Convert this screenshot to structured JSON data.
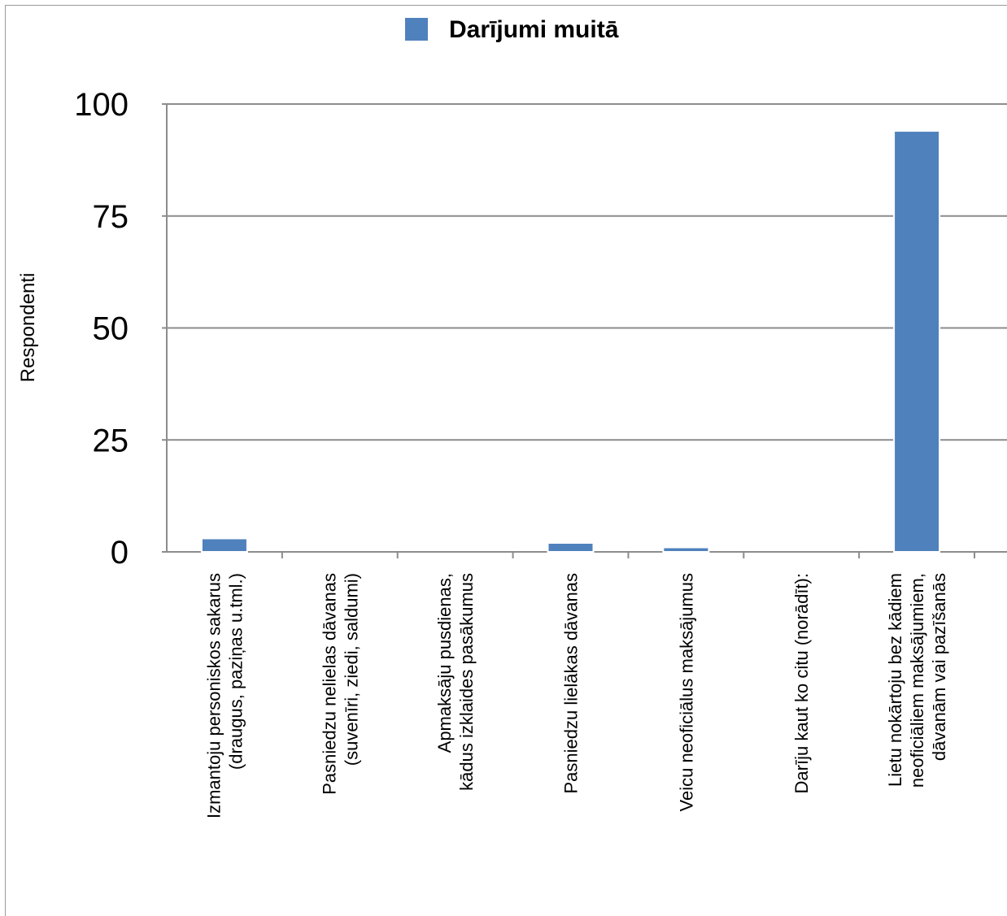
{
  "chart_data": {
    "type": "bar",
    "title": "",
    "legend": {
      "entries": [
        "Darījumi muitā"
      ],
      "placement": "top-center"
    },
    "ylabel": "Respondenti",
    "xlabel": "",
    "ylim": [
      0,
      100
    ],
    "yticks": [
      0,
      25,
      50,
      75,
      100
    ],
    "grid": true,
    "categories": [
      [
        "Izmantoju personiskos sakarus",
        "(draugus, paziņas u.tml.)"
      ],
      [
        "Pasniedzu nelielas dāvanas",
        "(suvenīri, ziedi, saldumi)"
      ],
      [
        "Apmaksāju pusdienas,",
        "kādus izklaides pasākumus"
      ],
      [
        "Pasniedzu lielākas dāvanas"
      ],
      [
        "Veicu neoficiālus maksājumus"
      ],
      [
        "Darīju kaut ko citu (norādīt):"
      ],
      [
        "Lietu nokārtoju bez kādiem",
        "neoficiāliem maksājumiem,",
        "dāvanām vai pazīšanās"
      ]
    ],
    "series": [
      {
        "name": "Darījumi muitā",
        "values": [
          3,
          0,
          0,
          2,
          1,
          0,
          94
        ]
      }
    ],
    "colors": {
      "bar": "#4f81bd",
      "grid": "#8c8c8c",
      "axis": "#8c8c8c"
    }
  }
}
